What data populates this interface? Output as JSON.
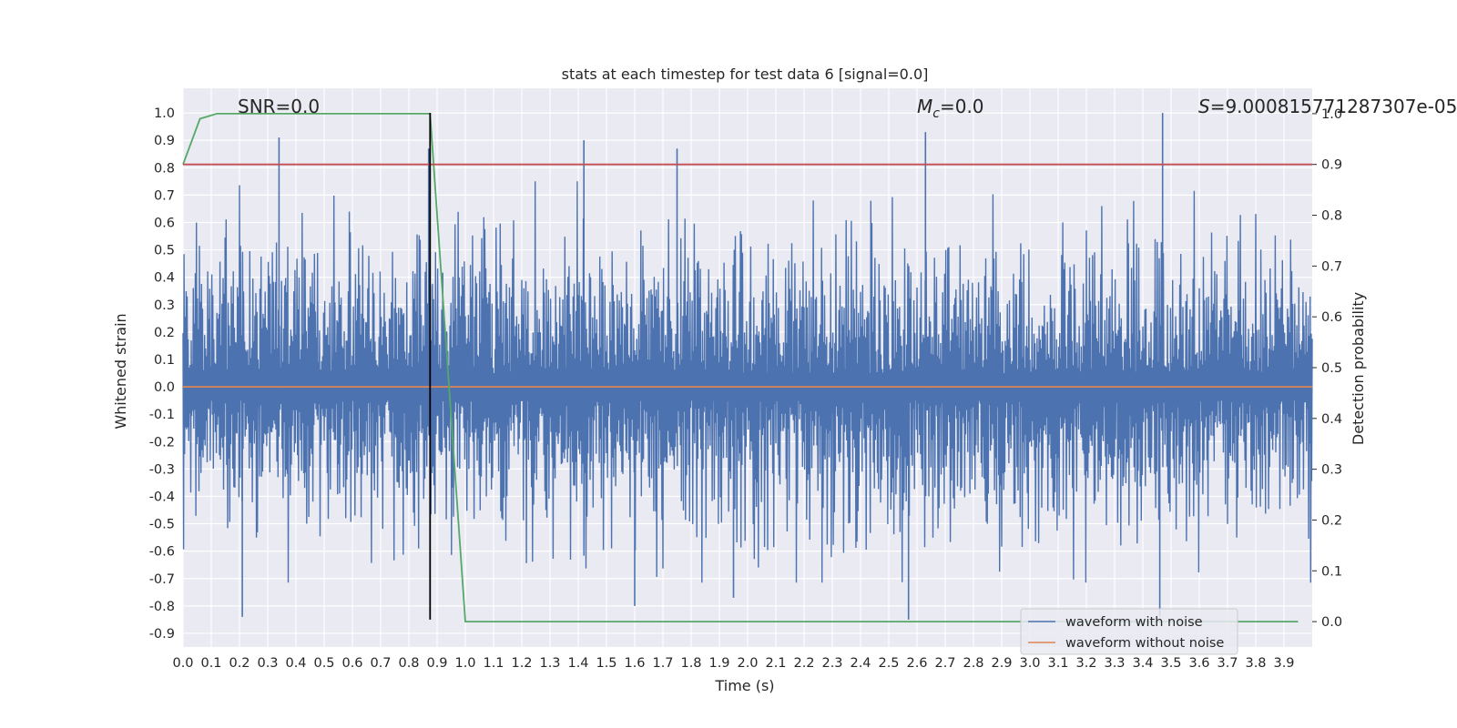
{
  "chart_data": {
    "type": "line",
    "title": "stats at each timestep for test data 6 [signal=0.0]",
    "xlabel": "Time (s)",
    "ylabel": "Whitened strain",
    "y2label": "Detection probability",
    "xlim": [
      0.0,
      4.0
    ],
    "ylim": [
      -0.95,
      1.09
    ],
    "y2lim": [
      -0.05,
      1.05
    ],
    "grid": true,
    "legend_position": "lower-right",
    "x_ticks": [
      "0.0",
      "0.1",
      "0.2",
      "0.3",
      "0.4",
      "0.5",
      "0.6",
      "0.7",
      "0.8",
      "0.9",
      "1.0",
      "1.1",
      "1.2",
      "1.3",
      "1.4",
      "1.5",
      "1.6",
      "1.7",
      "1.8",
      "1.9",
      "2.0",
      "2.1",
      "2.2",
      "2.3",
      "2.4",
      "2.5",
      "2.6",
      "2.7",
      "2.8",
      "2.9",
      "3.0",
      "3.1",
      "3.2",
      "3.3",
      "3.4",
      "3.5",
      "3.6",
      "3.7",
      "3.8",
      "3.9"
    ],
    "y_ticks": [
      "1.0",
      "0.9",
      "0.8",
      "0.7",
      "0.6",
      "0.5",
      "0.4",
      "0.3",
      "0.2",
      "0.1",
      "0.0",
      "-0.1",
      "-0.2",
      "-0.3",
      "-0.4",
      "-0.5",
      "-0.6",
      "-0.7",
      "-0.8",
      "-0.9"
    ],
    "y2_ticks": [
      "1.0",
      "0.9",
      "0.8",
      "0.7",
      "0.6",
      "0.5",
      "0.4",
      "0.3",
      "0.2",
      "0.1",
      "0.0"
    ],
    "annotations": {
      "snr": "SNR=0.0",
      "mc_symbol": "M",
      "mc_subscript": "c",
      "mc_value": "=0.0",
      "s_symbol": "S",
      "s_value": "=9.000815771287307e-05"
    },
    "series": [
      {
        "name": "waveform with noise",
        "color": "#4c72b0",
        "axis": "left",
        "noise": {
          "x_range": [
            0.0,
            4.0
          ],
          "max": 1.0,
          "min": -0.84,
          "typical_upper": 0.5,
          "typical_lower": -0.55
        },
        "peaks": [
          {
            "x": 0.34,
            "y": 0.91
          },
          {
            "x": 0.87,
            "y": 0.87
          },
          {
            "x": 1.42,
            "y": 0.9
          },
          {
            "x": 1.75,
            "y": 0.87
          },
          {
            "x": 2.63,
            "y": 0.93
          },
          {
            "x": 3.47,
            "y": 1.0
          },
          {
            "x": 0.21,
            "y": -0.84
          },
          {
            "x": 1.6,
            "y": -0.8
          },
          {
            "x": 1.95,
            "y": -0.77
          },
          {
            "x": 2.57,
            "y": -0.85
          },
          {
            "x": 3.46,
            "y": -0.84
          }
        ]
      },
      {
        "name": "waveform without noise",
        "color": "#dd8452",
        "axis": "left",
        "x": [
          0.0,
          4.0
        ],
        "y": [
          0.0,
          0.0
        ]
      },
      {
        "color": "#55a868",
        "axis": "right",
        "x": [
          0.0,
          0.06,
          0.12,
          0.875,
          1.0,
          3.95
        ],
        "y": [
          0.9,
          0.99,
          1.0,
          1.0,
          0.0,
          0.0
        ]
      },
      {
        "color": "#c44e52",
        "axis": "right",
        "x": [
          0.0,
          4.0
        ],
        "y": [
          0.9,
          0.9
        ]
      },
      {
        "color": "#000000",
        "axis": "left",
        "x": [
          0.875,
          0.875
        ],
        "y": [
          1.0,
          -0.85
        ]
      }
    ]
  }
}
